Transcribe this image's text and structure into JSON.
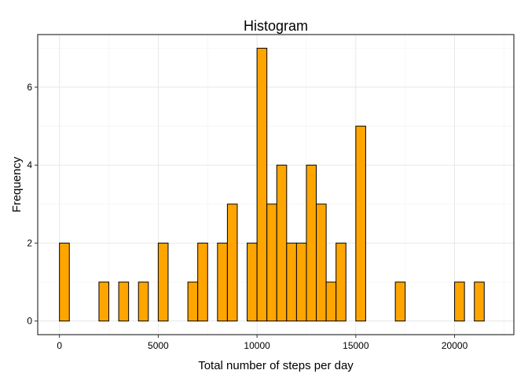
{
  "chart_data": {
    "type": "bar",
    "title": "Histogram",
    "xlabel": "Total number of steps per day",
    "ylabel": "Frequency",
    "xlim": [
      -1100,
      23000
    ],
    "ylim": [
      -0.35,
      7.35
    ],
    "x_ticks": [
      0,
      5000,
      10000,
      15000,
      20000
    ],
    "x_tick_labels": [
      "0",
      "5000",
      "10000",
      "15000",
      "20000"
    ],
    "y_ticks": [
      0,
      2,
      4,
      6
    ],
    "y_tick_labels": [
      "0",
      "2",
      "4",
      "6"
    ],
    "grid": true,
    "bin_width": 500,
    "bar_color": "#FFA500",
    "bar_stroke": "#000000",
    "bins_start": [
      -500,
      0,
      500,
      1000,
      1500,
      2000,
      2500,
      3000,
      3500,
      4000,
      4500,
      5000,
      5500,
      6000,
      6500,
      7000,
      7500,
      8000,
      8500,
      9000,
      9500,
      10000,
      10500,
      11000,
      11500,
      12000,
      12500,
      13000,
      13500,
      14000,
      14500,
      15000,
      15500,
      16000,
      16500,
      17000,
      17500,
      18000,
      18500,
      19000,
      19500,
      20000,
      20500,
      21000,
      21500
    ],
    "values": [
      0,
      2,
      0,
      0,
      0,
      1,
      0,
      1,
      0,
      1,
      0,
      2,
      0,
      0,
      1,
      2,
      0,
      2,
      3,
      0,
      2,
      7,
      3,
      4,
      2,
      2,
      4,
      3,
      1,
      2,
      0,
      5,
      0,
      0,
      0,
      1,
      0,
      0,
      0,
      0,
      0,
      1,
      0,
      1,
      0
    ]
  }
}
